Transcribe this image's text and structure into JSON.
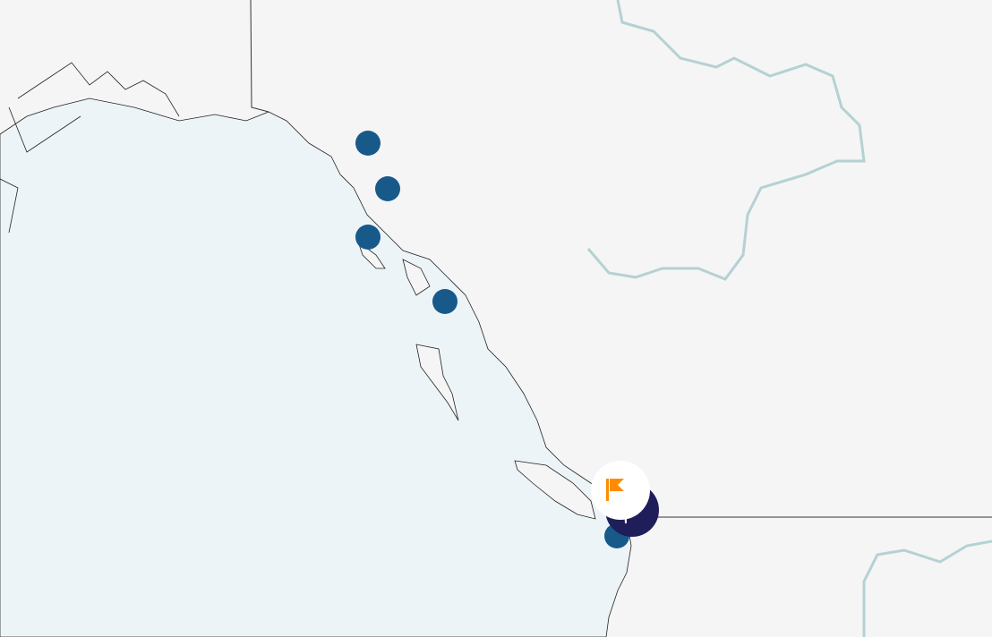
{
  "map": {
    "colors": {
      "land": "#f5f5f5",
      "water": "#edf4f7",
      "border": "#333333",
      "river": "#b5d1d3",
      "marker": "#175a8a",
      "cluster": "#1f1d5a",
      "flag": "#ff8c00"
    },
    "markers": [
      {
        "id": "marker-1",
        "icon": "circle"
      },
      {
        "id": "marker-2",
        "icon": "circle"
      },
      {
        "id": "marker-3",
        "icon": "circle"
      },
      {
        "id": "marker-4",
        "icon": "circle"
      },
      {
        "id": "marker-5",
        "icon": "circle"
      }
    ],
    "selected_marker": {
      "icon": "maple-leaf",
      "badge_icon": "flag-icon"
    }
  }
}
